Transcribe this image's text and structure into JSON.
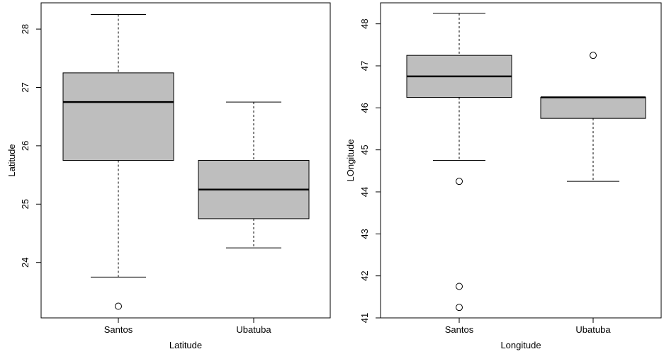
{
  "chart_data": [
    {
      "type": "boxplot",
      "xlabel": "Latitude",
      "ylabel": "Latitude",
      "ylim": [
        23.05,
        28.45
      ],
      "yticks": [
        24,
        25,
        26,
        27,
        28
      ],
      "categories": [
        "Santos",
        "Ubatuba"
      ],
      "box_color": "#bebebe",
      "boxes": [
        {
          "name": "Santos",
          "whisker_low": 23.75,
          "q1": 25.75,
          "median": 26.75,
          "q3": 27.25,
          "whisker_high": 28.25,
          "outliers": [
            23.25
          ]
        },
        {
          "name": "Ubatuba",
          "whisker_low": 24.25,
          "q1": 24.75,
          "median": 25.25,
          "q3": 25.75,
          "whisker_high": 26.75,
          "outliers": []
        }
      ]
    },
    {
      "type": "boxplot",
      "xlabel": "Longitude",
      "ylabel": "LOngitude",
      "ylim": [
        41.0,
        48.5
      ],
      "yticks": [
        41,
        42,
        43,
        44,
        45,
        46,
        47,
        48
      ],
      "categories": [
        "Santos",
        "Ubatuba"
      ],
      "box_color": "#bebebe",
      "boxes": [
        {
          "name": "Santos",
          "whisker_low": 44.75,
          "q1": 46.25,
          "median": 46.75,
          "q3": 47.25,
          "whisker_high": 48.25,
          "outliers": [
            44.25,
            41.75,
            41.25
          ]
        },
        {
          "name": "Ubatuba",
          "whisker_low": 44.25,
          "q1": 45.75,
          "median": 46.25,
          "q3": 46.25,
          "whisker_high": 46.25,
          "outliers": [
            47.25
          ]
        }
      ]
    }
  ]
}
